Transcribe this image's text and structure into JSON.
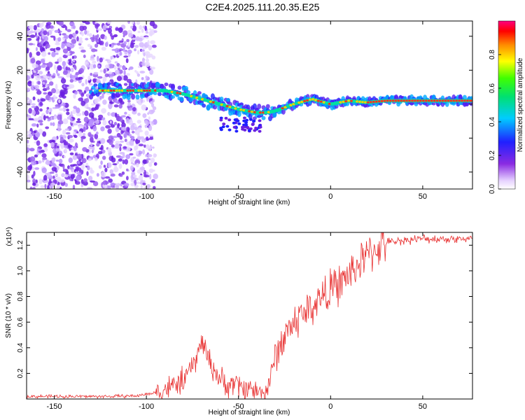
{
  "title": "C2E4.2025.111.20.35.E25",
  "chart_data": [
    {
      "type": "heatmap",
      "xlabel": "Height of straight line (km)",
      "ylabel": "Frequency (Hz)",
      "xlim": [
        -165,
        77
      ],
      "ylim": [
        -50,
        49
      ],
      "xticks": [
        -150,
        -100,
        -50,
        0,
        50
      ],
      "yticks": [
        -40,
        -20,
        0,
        20,
        40
      ],
      "colorbar": {
        "label": "Normalized spectral amplitude",
        "range": [
          0,
          1
        ],
        "ticks": [
          "0.0",
          "0.2",
          "0.4",
          "0.6",
          "0.8"
        ]
      },
      "ridge": {
        "x": [
          -125,
          -110,
          -100,
          -90,
          -80,
          -70,
          -60,
          -50,
          -40,
          -35,
          -30,
          -25,
          -20,
          -10,
          0,
          10,
          20,
          30,
          40,
          50,
          60,
          77
        ],
        "y": [
          8,
          8,
          8,
          8,
          6,
          3,
          0,
          -3,
          -5,
          -5,
          -4,
          -2,
          0,
          3,
          0,
          2,
          1,
          2,
          2,
          2,
          2,
          2
        ]
      },
      "noise_region_x": [
        -165,
        -100
      ]
    },
    {
      "type": "line",
      "xlabel": "Height of straight line (km)",
      "ylabel": "SNR (10 * v/v)",
      "y_multiplier": "(x10⁴)",
      "xlim": [
        -165,
        77
      ],
      "ylim": [
        0,
        1.3
      ],
      "xticks": [
        -150,
        -100,
        -50,
        0,
        50
      ],
      "yticks": [
        0.2,
        0.4,
        0.6,
        0.8,
        1.0,
        1.2
      ],
      "series": [
        {
          "color": "#e83030",
          "x": [
            -165,
            -140,
            -120,
            -105,
            -95,
            -90,
            -85,
            -80,
            -75,
            -72,
            -70,
            -68,
            -66,
            -62,
            -58,
            -55,
            -52,
            -50,
            -48,
            -45,
            -42,
            -38,
            -35,
            -32,
            -30,
            -27,
            -25,
            -22,
            -20,
            -15,
            -10,
            -5,
            0,
            5,
            10,
            15,
            20,
            25,
            30,
            35,
            40,
            50,
            60,
            77
          ],
          "y": [
            0.02,
            0.02,
            0.02,
            0.025,
            0.05,
            0.08,
            0.1,
            0.15,
            0.25,
            0.35,
            0.45,
            0.4,
            0.3,
            0.2,
            0.12,
            0.1,
            0.14,
            0.1,
            0.08,
            0.1,
            0.07,
            0.05,
            0.06,
            0.2,
            0.35,
            0.42,
            0.5,
            0.55,
            0.6,
            0.66,
            0.72,
            0.8,
            0.85,
            0.9,
            0.97,
            1.05,
            1.12,
            1.18,
            1.22,
            1.23,
            1.24,
            1.25,
            1.25,
            1.25
          ]
        }
      ]
    }
  ]
}
